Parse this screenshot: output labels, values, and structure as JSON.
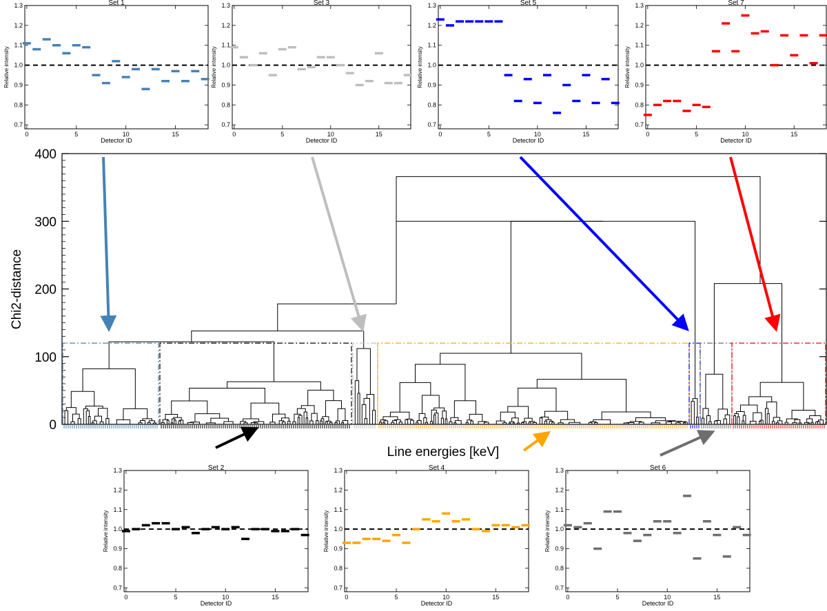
{
  "colors": {
    "set1": "#4682B4",
    "set2": "#000000",
    "set3": "#BEBEBE",
    "set4": "#FFA500",
    "set5": "#0000FF",
    "set6": "#6E6E6E",
    "set7": "#FF0000"
  },
  "main": {
    "ylabel": "Chi2-distance",
    "xlabel": "Line energies [keV]",
    "yticks": [
      0,
      100,
      200,
      300,
      400
    ]
  },
  "chart_data": [
    {
      "type": "scatter",
      "title": "Set 1",
      "xlabel": "Detector ID",
      "ylabel": "Relative intensity",
      "color": "#4682B4",
      "xlim": [
        -0.2,
        18.3
      ],
      "ylim": [
        0.68,
        1.3
      ],
      "xticks": [
        0,
        5,
        10,
        15
      ],
      "yticks": [
        0.7,
        0.8,
        0.9,
        1.0,
        1.1,
        1.2,
        1.3
      ],
      "reference_line": 1.0,
      "x": [
        0,
        1,
        2,
        3,
        4,
        5,
        6,
        7,
        8,
        9,
        10,
        11,
        12,
        13,
        14,
        15,
        16,
        17,
        18
      ],
      "y": [
        1.11,
        1.08,
        1.13,
        1.1,
        1.06,
        1.1,
        1.09,
        0.95,
        0.91,
        1.02,
        0.94,
        0.98,
        0.88,
        0.98,
        0.92,
        0.97,
        0.92,
        0.97,
        0.93
      ]
    },
    {
      "type": "scatter",
      "title": "Set 3",
      "xlabel": "Detector ID",
      "ylabel": "Relative intensity",
      "color": "#BEBEBE",
      "xlim": [
        -0.2,
        18.3
      ],
      "ylim": [
        0.68,
        1.3
      ],
      "xticks": [
        0,
        5,
        10,
        15
      ],
      "yticks": [
        0.7,
        0.8,
        0.9,
        1.0,
        1.1,
        1.2,
        1.3
      ],
      "reference_line": 1.0,
      "x": [
        0,
        1,
        2,
        3,
        4,
        5,
        6,
        7,
        8,
        9,
        10,
        11,
        12,
        13,
        14,
        15,
        16,
        17,
        18
      ],
      "y": [
        1.09,
        1.04,
        1.0,
        1.06,
        0.95,
        1.08,
        1.09,
        0.98,
        0.99,
        1.04,
        1.04,
        1.0,
        0.96,
        0.9,
        0.92,
        1.06,
        0.91,
        0.91,
        0.95
      ]
    },
    {
      "type": "scatter",
      "title": "Set 5",
      "xlabel": "Detector ID",
      "ylabel": "Relative intensity",
      "color": "#0000FF",
      "xlim": [
        -0.2,
        18.3
      ],
      "ylim": [
        0.68,
        1.3
      ],
      "xticks": [
        0,
        5,
        10,
        15
      ],
      "yticks": [
        0.7,
        0.8,
        0.9,
        1.0,
        1.1,
        1.2,
        1.3
      ],
      "reference_line": 1.0,
      "x": [
        0,
        1,
        2,
        3,
        4,
        5,
        6,
        7,
        8,
        9,
        10,
        11,
        12,
        13,
        14,
        15,
        16,
        17,
        18
      ],
      "y": [
        1.23,
        1.2,
        1.22,
        1.22,
        1.22,
        1.22,
        1.22,
        0.95,
        0.82,
        0.93,
        0.81,
        0.95,
        0.76,
        0.9,
        0.82,
        0.95,
        0.81,
        0.93,
        0.81
      ]
    },
    {
      "type": "scatter",
      "title": "Set 7",
      "xlabel": "Detector ID",
      "ylabel": "Relative intensity",
      "color": "#FF0000",
      "xlim": [
        -0.2,
        18.3
      ],
      "ylim": [
        0.68,
        1.3
      ],
      "xticks": [
        0,
        5,
        10,
        15
      ],
      "yticks": [
        0.7,
        0.8,
        0.9,
        1.0,
        1.1,
        1.2,
        1.3
      ],
      "reference_line": 1.0,
      "x": [
        0,
        1,
        2,
        3,
        4,
        5,
        6,
        7,
        8,
        9,
        10,
        11,
        12,
        13,
        14,
        15,
        16,
        17,
        18
      ],
      "y": [
        0.75,
        0.8,
        0.82,
        0.82,
        0.77,
        0.8,
        0.79,
        1.07,
        1.21,
        1.07,
        1.25,
        1.16,
        1.17,
        1.0,
        1.15,
        1.05,
        1.15,
        1.01,
        1.15
      ]
    },
    {
      "type": "scatter",
      "title": "Set 2",
      "xlabel": "Detector ID",
      "ylabel": "Relative intensity",
      "color": "#000000",
      "xlim": [
        -0.2,
        18.3
      ],
      "ylim": [
        0.68,
        1.3
      ],
      "xticks": [
        0,
        5,
        10,
        15
      ],
      "yticks": [
        0.7,
        0.8,
        0.9,
        1.0,
        1.1,
        1.2,
        1.3
      ],
      "reference_line": 1.0,
      "x": [
        0,
        1,
        2,
        3,
        4,
        5,
        6,
        7,
        8,
        9,
        10,
        11,
        12,
        13,
        14,
        15,
        16,
        17,
        18
      ],
      "y": [
        0.99,
        1.0,
        1.02,
        1.03,
        1.03,
        1.0,
        1.01,
        0.98,
        1.0,
        1.01,
        1.0,
        1.01,
        0.95,
        1.0,
        1.0,
        0.99,
        0.99,
        1.0,
        0.97
      ]
    },
    {
      "type": "scatter",
      "title": "Set 4",
      "xlabel": "Detector ID",
      "ylabel": "Relative intensity",
      "color": "#FFA500",
      "xlim": [
        -0.2,
        18.3
      ],
      "ylim": [
        0.68,
        1.3
      ],
      "xticks": [
        0,
        5,
        10,
        15
      ],
      "yticks": [
        0.7,
        0.8,
        0.9,
        1.0,
        1.1,
        1.2,
        1.3
      ],
      "reference_line": 1.0,
      "x": [
        0,
        1,
        2,
        3,
        4,
        5,
        6,
        7,
        8,
        9,
        10,
        11,
        12,
        13,
        14,
        15,
        16,
        17,
        18
      ],
      "y": [
        0.93,
        0.93,
        0.95,
        0.95,
        0.94,
        0.97,
        0.93,
        1.0,
        1.05,
        1.04,
        1.08,
        1.04,
        1.05,
        1.0,
        0.99,
        1.02,
        1.02,
        1.01,
        1.02
      ]
    },
    {
      "type": "scatter",
      "title": "Set 6",
      "xlabel": "Detector ID",
      "ylabel": "Relative intensity",
      "color": "#6E6E6E",
      "xlim": [
        -0.2,
        18.3
      ],
      "ylim": [
        0.68,
        1.3
      ],
      "xticks": [
        0,
        5,
        10,
        15
      ],
      "yticks": [
        0.7,
        0.8,
        0.9,
        1.0,
        1.1,
        1.2,
        1.3
      ],
      "reference_line": 1.0,
      "x": [
        0,
        1,
        2,
        3,
        4,
        5,
        6,
        7,
        8,
        9,
        10,
        11,
        12,
        13,
        14,
        15,
        16,
        17,
        18
      ],
      "y": [
        1.02,
        1.01,
        1.03,
        0.9,
        1.09,
        1.09,
        0.98,
        0.94,
        0.97,
        1.04,
        1.04,
        0.98,
        1.17,
        0.85,
        1.04,
        0.97,
        0.86,
        1.01,
        0.97
      ]
    }
  ],
  "dendrogram": {
    "ylim": [
      0,
      400
    ],
    "cut_height": 120,
    "top_merges": [
      366,
      300,
      208,
      178,
      138,
      122
    ],
    "clusters": [
      {
        "name": "Set 1",
        "color": "#4682B4"
      },
      {
        "name": "Set 2",
        "color": "#000000"
      },
      {
        "name": "Set 3",
        "color": "#BEBEBE"
      },
      {
        "name": "Set 4",
        "color": "#FFA500"
      },
      {
        "name": "Set 5",
        "color": "#0000FF"
      },
      {
        "name": "Set 6",
        "color": "#6E6E6E"
      },
      {
        "name": "Set 7",
        "color": "#FF0000"
      }
    ]
  }
}
